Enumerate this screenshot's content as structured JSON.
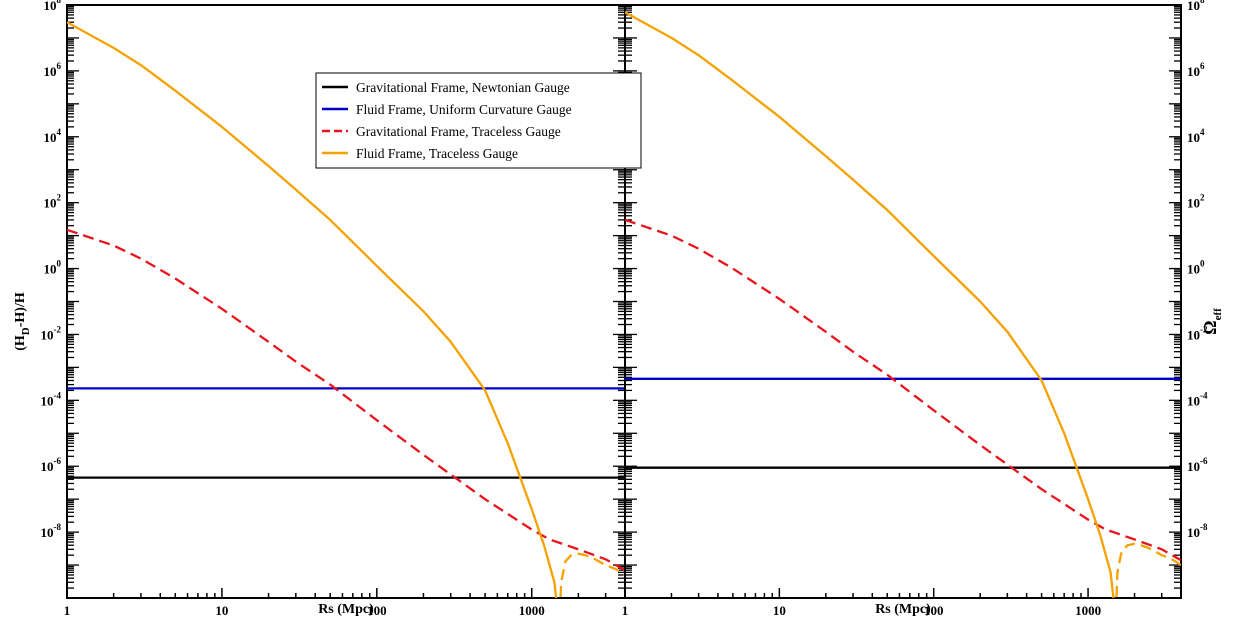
{
  "chart_data": [
    {
      "type": "line",
      "panel": "left",
      "xlabel": "Rs (Mpc)",
      "ylabel": "(H_D-H)/H",
      "ylabel_parts": {
        "base": "(H",
        "sub": "D",
        "rest": "-H)/H"
      },
      "xscale": "log",
      "yscale": "log",
      "xlim": [
        1,
        4000
      ],
      "ylim": [
        1e-10,
        100000000.0
      ],
      "x_tick_labels": [
        "1",
        "10",
        "100",
        "1000"
      ],
      "y_tick_labels": [
        {
          "base": "10",
          "exp": "-8"
        },
        {
          "base": "10",
          "exp": "-6"
        },
        {
          "base": "10",
          "exp": "-4"
        },
        {
          "base": "10",
          "exp": "-2"
        },
        {
          "base": "10",
          "exp": "0"
        },
        {
          "base": "10",
          "exp": "2"
        },
        {
          "base": "10",
          "exp": "4"
        },
        {
          "base": "10",
          "exp": "6"
        },
        {
          "base": "10",
          "exp": "8"
        }
      ],
      "series": [
        {
          "name": "Gravitational Frame, Newtonian Gauge",
          "color": "#000000",
          "style": "solid",
          "x": [
            1,
            4000
          ],
          "y": [
            4.5e-07,
            4.5e-07
          ]
        },
        {
          "name": "Fluid Frame, Uniform Curvature Gauge",
          "color": "#0000cc",
          "style": "solid",
          "x": [
            1,
            4000
          ],
          "y": [
            0.00023,
            0.00023
          ]
        },
        {
          "name": "Gravitational Frame, Traceless Gauge",
          "color": "#e8141c",
          "style": "dashed",
          "x": [
            1,
            2,
            3,
            5,
            10,
            20,
            30,
            50,
            100,
            200,
            500,
            1000,
            1300,
            2000,
            3000,
            4000
          ],
          "y": [
            15,
            5,
            2,
            0.5,
            0.06,
            0.006,
            0.0015,
            0.0003,
            2.5e-05,
            2.2e-06,
            1e-07,
            1.2e-08,
            6e-09,
            3e-09,
            1.5e-09,
            7e-10
          ]
        },
        {
          "name": "Fluid Frame, Traceless Gauge",
          "color": "#f5a100",
          "style": "solid",
          "x": [
            1,
            2,
            3,
            5,
            10,
            20,
            30,
            50,
            100,
            200,
            300,
            500,
            700,
            1000,
            1200,
            1400,
            1460,
            1500
          ],
          "y": [
            30000000.0,
            5000000.0,
            1500000.0,
            250000.0,
            20000.0,
            1300.0,
            250,
            30,
            1.2,
            0.05,
            0.006,
            0.0002,
            5e-06,
            5e-08,
            4e-09,
            3e-10,
            5e-11,
            1e-11
          ]
        },
        {
          "name": "Fluid Frame, Traceless Gauge",
          "color": "#f5a100",
          "style": "dashed",
          "x": [
            1500,
            1550,
            1650,
            1800,
            2000,
            2200,
            2500,
            3000,
            3500,
            4000
          ],
          "y": [
            1e-11,
            3e-10,
            1.3e-09,
            2e-09,
            2.2e-09,
            2e-09,
            1.6e-09,
            1e-09,
            7.5e-10,
            5e-10
          ]
        }
      ]
    },
    {
      "type": "line",
      "panel": "right",
      "xlabel": "Rs (Mpc)",
      "ylabel": "Ω_eff",
      "ylabel_parts": {
        "base": "Ω",
        "sub": "eff"
      },
      "xscale": "log",
      "yscale": "log",
      "xlim": [
        1,
        4000
      ],
      "ylim": [
        1e-10,
        100000000.0
      ],
      "x_tick_labels": [
        "1",
        "10",
        "100",
        "1000"
      ],
      "y_tick_labels": [
        {
          "base": "10",
          "exp": "-8"
        },
        {
          "base": "10",
          "exp": "-6"
        },
        {
          "base": "10",
          "exp": "-4"
        },
        {
          "base": "10",
          "exp": "-2"
        },
        {
          "base": "10",
          "exp": "0"
        },
        {
          "base": "10",
          "exp": "2"
        },
        {
          "base": "10",
          "exp": "4"
        },
        {
          "base": "10",
          "exp": "6"
        },
        {
          "base": "10",
          "exp": "8"
        }
      ],
      "series": [
        {
          "name": "Gravitational Frame, Newtonian Gauge",
          "color": "#000000",
          "style": "solid",
          "x": [
            1,
            4000
          ],
          "y": [
            9e-07,
            9e-07
          ]
        },
        {
          "name": "Fluid Frame, Uniform Curvature Gauge",
          "color": "#0000cc",
          "style": "solid",
          "x": [
            1,
            4000
          ],
          "y": [
            0.00045,
            0.00045
          ]
        },
        {
          "name": "Gravitational Frame, Traceless Gauge",
          "color": "#e8141c",
          "style": "dashed",
          "x": [
            1,
            2,
            3,
            5,
            10,
            20,
            30,
            50,
            100,
            200,
            500,
            1000,
            1300,
            2000,
            3000,
            4000
          ],
          "y": [
            30,
            10,
            4,
            1,
            0.12,
            0.012,
            0.003,
            0.0006,
            5e-05,
            4.4e-06,
            2e-07,
            2.4e-08,
            1.2e-08,
            6e-09,
            3e-09,
            1.4e-09
          ]
        },
        {
          "name": "Fluid Frame, Traceless Gauge",
          "color": "#f5a100",
          "style": "solid",
          "x": [
            1,
            2,
            3,
            5,
            10,
            20,
            30,
            50,
            100,
            200,
            300,
            500,
            700,
            1000,
            1200,
            1400,
            1460,
            1500
          ],
          "y": [
            60000000.0,
            10000000.0,
            3000000.0,
            500000.0,
            40000.0,
            2600.0,
            500,
            60,
            2.4,
            0.1,
            0.012,
            0.0004,
            1e-05,
            1e-07,
            8e-09,
            6e-10,
            1e-10,
            1e-11
          ]
        },
        {
          "name": "Fluid Frame, Traceless Gauge",
          "color": "#f5a100",
          "style": "dashed",
          "x": [
            1500,
            1550,
            1650,
            1800,
            2000,
            2200,
            2500,
            3000,
            3500,
            4000
          ],
          "y": [
            1e-11,
            6e-10,
            2.6e-09,
            4e-09,
            4.4e-09,
            4e-09,
            3.2e-09,
            2e-09,
            1.5e-09,
            1e-09
          ]
        }
      ]
    }
  ],
  "legend": {
    "placement": "top-center of left panel",
    "entries": [
      {
        "label": "Gravitational Frame, Newtonian Gauge",
        "color": "#000000",
        "style": "solid"
      },
      {
        "label": "Fluid Frame, Uniform Curvature Gauge",
        "color": "#0000cc",
        "style": "solid"
      },
      {
        "label": "Gravitational Frame, Traceless Gauge",
        "color": "#e8141c",
        "style": "dashed"
      },
      {
        "label": "Fluid Frame, Traceless Gauge",
        "color": "#f5a100",
        "style": "solid"
      }
    ]
  }
}
